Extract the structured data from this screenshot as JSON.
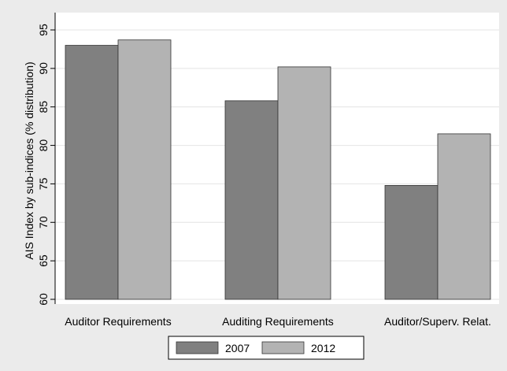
{
  "chart_data": {
    "type": "bar",
    "title": "",
    "xlabel": "",
    "ylabel": "AIS Index by sub-indices (% distribution)",
    "categories": [
      "Auditor Requirements",
      "Auditing Requirements",
      "Auditor/Superv. Relat."
    ],
    "series": [
      {
        "name": "2007",
        "values": [
          93.0,
          85.8,
          74.8
        ],
        "color": "#808080"
      },
      {
        "name": "2012",
        "values": [
          93.7,
          90.2,
          81.5
        ],
        "color": "#b3b3b3"
      }
    ],
    "ylim": [
      60,
      95
    ],
    "yticks": [
      60,
      65,
      70,
      75,
      80,
      85,
      90,
      95
    ],
    "grid": true,
    "legend_position": "bottom"
  }
}
